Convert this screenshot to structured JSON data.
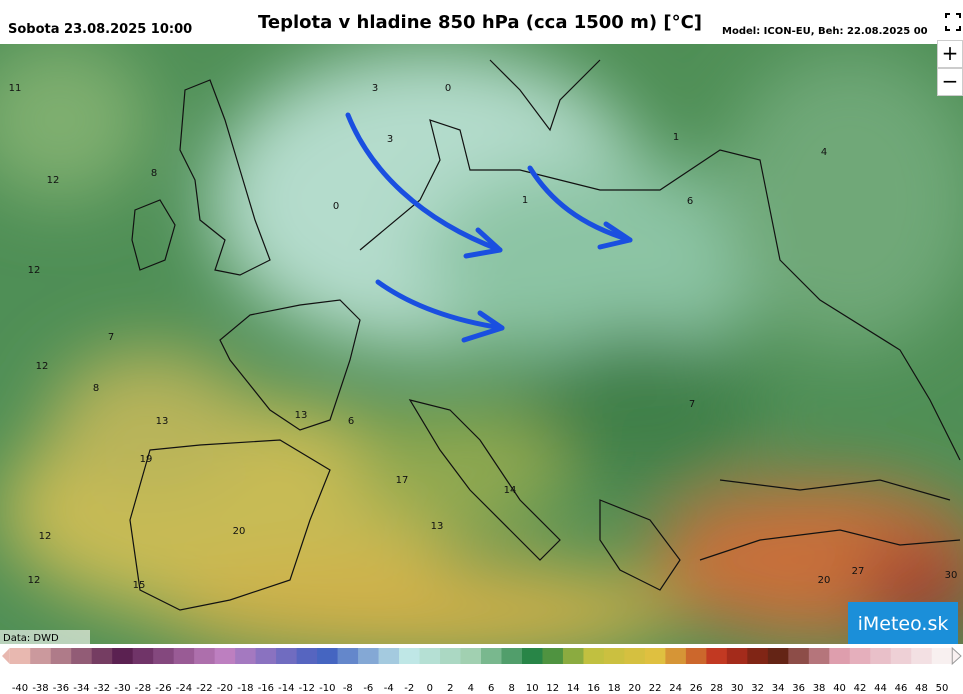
{
  "header": {
    "date": "Sobota 23.08.2025 10:00",
    "title": "Teplota v hladine 850 hPa (cca 1500 m) [°C]",
    "model": "Model: ICON-EU, Beh: 22.08.2025 00"
  },
  "controls": {
    "zoom_in": "+",
    "zoom_out": "−"
  },
  "map": {
    "labels": [
      "11",
      "3",
      "0",
      "3",
      "1",
      "4",
      "12",
      "8",
      "1",
      "0",
      "6",
      "12",
      "7",
      "12",
      "8",
      "13",
      "6",
      "13",
      "7",
      "19",
      "17",
      "14",
      "13",
      "20",
      "12",
      "12",
      "15",
      "20",
      "27",
      "30"
    ]
  },
  "source": "Data: DWD",
  "logo": "iMeteo.sk",
  "colorbar": {
    "ticks": [
      -40,
      -38,
      -36,
      -34,
      -32,
      -30,
      -28,
      -26,
      -24,
      -22,
      -20,
      -18,
      -16,
      -14,
      -12,
      -10,
      -8,
      -6,
      -4,
      -2,
      0,
      2,
      4,
      6,
      8,
      10,
      12,
      14,
      16,
      18,
      20,
      22,
      24,
      26,
      28,
      30,
      32,
      34,
      36,
      38,
      40,
      42,
      44,
      46,
      48,
      50
    ]
  }
}
